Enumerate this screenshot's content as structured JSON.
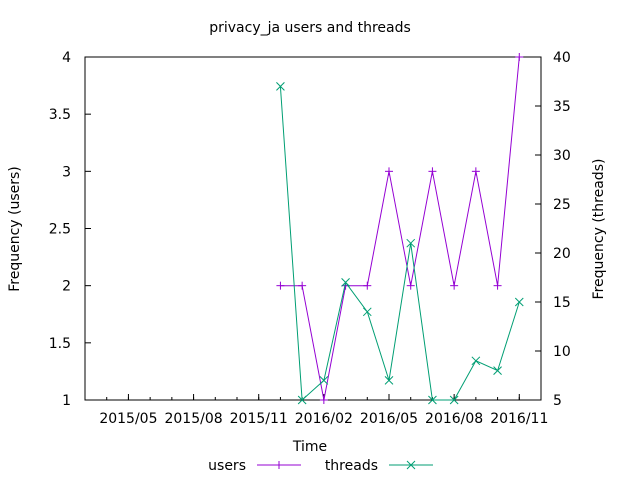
{
  "chart_data": {
    "type": "line",
    "title": "privacy_ja users and threads",
    "xlabel": "Time",
    "ylabel_left": "Frequency (users)",
    "ylabel_right": "Frequency (threads)",
    "x_ticks": [
      "2015/05",
      "2015/08",
      "2015/11",
      "2016/02",
      "2016/05",
      "2016/08",
      "2016/11"
    ],
    "ylim_left": [
      1,
      4
    ],
    "y_ticks_left": [
      "1",
      "1.5",
      "2",
      "2.5",
      "3",
      "3.5",
      "4"
    ],
    "ylim_right": [
      5,
      40
    ],
    "y_ticks_right": [
      "5",
      "10",
      "15",
      "20",
      "25",
      "30",
      "35",
      "40"
    ],
    "grid": false,
    "legend": "bottom",
    "series": [
      {
        "name": "users",
        "axis": "left",
        "color": "#9400d3",
        "marker": "plus",
        "x": [
          "2015-12",
          "2016-01",
          "2016-02",
          "2016-03",
          "2016-04",
          "2016-05",
          "2016-06",
          "2016-07",
          "2016-08",
          "2016-09",
          "2016-10",
          "2016-11"
        ],
        "values": [
          2,
          2,
          1,
          2,
          2,
          3,
          2,
          3,
          2,
          3,
          2,
          4
        ]
      },
      {
        "name": "threads",
        "axis": "right",
        "color": "#009e73",
        "marker": "cross",
        "x": [
          "2015-12",
          "2016-01",
          "2016-02",
          "2016-03",
          "2016-04",
          "2016-05",
          "2016-06",
          "2016-07",
          "2016-08",
          "2016-09",
          "2016-10",
          "2016-11"
        ],
        "values": [
          37,
          5,
          7,
          17,
          14,
          7,
          21,
          5,
          5,
          9,
          8,
          15
        ]
      }
    ]
  }
}
